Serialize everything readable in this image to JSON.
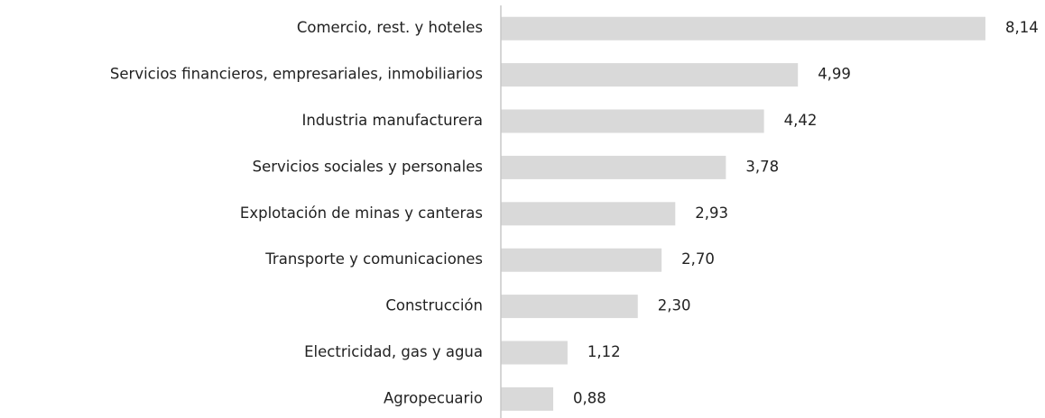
{
  "chart_data": {
    "type": "bar",
    "orientation": "horizontal",
    "categories": [
      "Comercio, rest. y hoteles",
      "Servicios financieros, empresariales, inmobiliarios",
      "Industria manufacturera",
      "Servicios sociales y personales",
      "Explotación de minas y canteras",
      "Transporte y comunicaciones",
      "Construcción",
      "Electricidad, gas y agua",
      "Agropecuario"
    ],
    "values": [
      8.14,
      4.99,
      4.42,
      3.78,
      2.93,
      2.7,
      2.3,
      1.12,
      0.88
    ],
    "value_labels": [
      "8,14",
      "4,99",
      "4,42",
      "3,78",
      "2,93",
      "2,70",
      "2,30",
      "1,12",
      "0,88"
    ],
    "color": "#d9d9d9"
  }
}
